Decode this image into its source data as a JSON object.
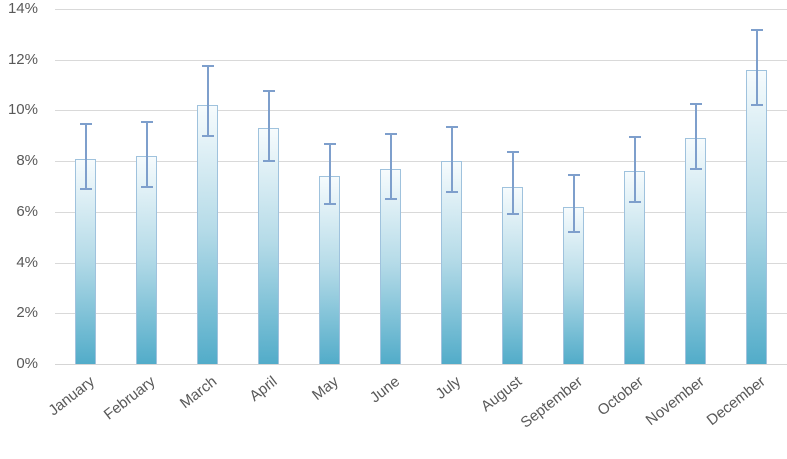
{
  "chart_data": {
    "type": "bar",
    "title": "",
    "xlabel": "",
    "ylabel": "",
    "categories": [
      "January",
      "February",
      "March",
      "April",
      "May",
      "June",
      "July",
      "August",
      "September",
      "October",
      "November",
      "December"
    ],
    "values": [
      8.1,
      8.2,
      10.2,
      9.3,
      7.4,
      7.7,
      8.0,
      7.0,
      6.2,
      7.6,
      8.9,
      11.6
    ],
    "error_high": [
      9.5,
      9.6,
      11.8,
      10.8,
      8.7,
      9.1,
      9.4,
      8.4,
      7.5,
      9.0,
      10.3,
      13.2
    ],
    "error_low": [
      6.9,
      7.0,
      9.0,
      8.0,
      6.3,
      6.5,
      6.8,
      5.9,
      5.2,
      6.4,
      7.7,
      10.2
    ],
    "unit": "%",
    "ylim": [
      0,
      14
    ],
    "ytick_step": 2,
    "ytick_labels": [
      "0%",
      "2%",
      "4%",
      "6%",
      "8%",
      "10%",
      "12%",
      "14%"
    ],
    "grid": true,
    "legend": false,
    "x_label_rotation_deg": -38
  },
  "colors": {
    "background": "#FFFFFF",
    "bar_gradient_top": "#F6FBFD",
    "bar_gradient_mid": "#B5DBE8",
    "bar_gradient_bottom": "#52ACC9",
    "bar_border": "#9FC2DD",
    "error_bar": "#7E9FCC",
    "gridline": "#D9D9D9",
    "axis_line": "#D5D5D5",
    "tick_label": "#595959"
  }
}
